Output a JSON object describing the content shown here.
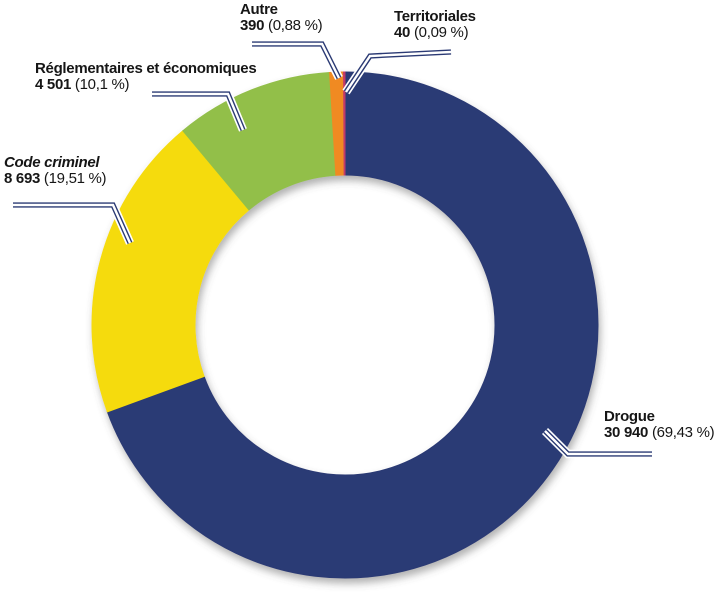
{
  "chart_data": {
    "type": "pie",
    "subtype": "donut",
    "title": "",
    "legend": "none",
    "value_format": "value (percent %), French number formatting",
    "slices": [
      {
        "key": "drogue",
        "label": "Drogue",
        "value": "30 940",
        "pct": "(69,43 %)",
        "percent": 69.43,
        "color": "#2b3a74",
        "italic": false
      },
      {
        "key": "code-criminel",
        "label": "Code criminel",
        "value": "8 693",
        "pct": "(19,51 %)",
        "percent": 19.51,
        "color": "#f5db10",
        "italic": true
      },
      {
        "key": "reglementaires",
        "label": "Réglementaires et économiques",
        "value": "4 501",
        "pct": "(10,1 %)",
        "percent": 10.1,
        "color": "#92bf49",
        "italic": false
      },
      {
        "key": "autre",
        "label": "Autre",
        "value": "390",
        "pct": "(0,88 %)",
        "percent": 0.88,
        "color": "#f08a24",
        "italic": false
      },
      {
        "key": "territoriales",
        "label": "Territoriales",
        "value": "40",
        "pct": "(0,09 %)",
        "percent": 0.09,
        "color": "#c23a6b",
        "italic": false
      }
    ],
    "colors": {
      "leader_line": "#2b3a74",
      "label_text": "#161616",
      "background": "#ffffff",
      "hole": "#ffffff"
    },
    "geometry_note": "donut starts at 12 o'clock, clockwise, order: Drogue, Code criminel, Réglementaires et économiques, Autre, Territoriales"
  }
}
